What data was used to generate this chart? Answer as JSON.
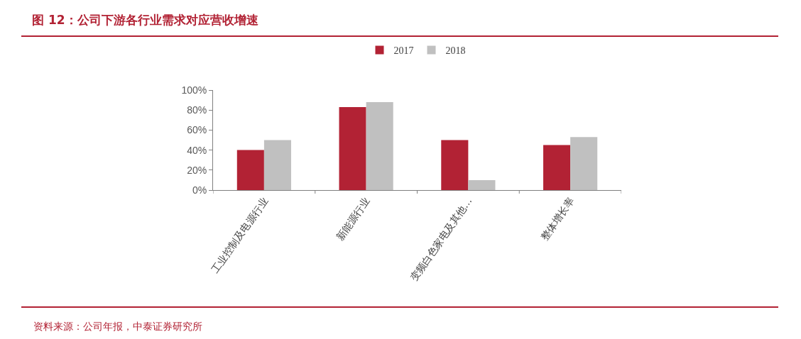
{
  "chart_data": {
    "type": "bar",
    "title": "图 12：公司下游各行业需求对应营收增速",
    "categories": [
      "工业控制及电源行业",
      "新能源行业",
      "变频白色家电及其他…",
      "整体增长率"
    ],
    "series": [
      {
        "name": "2017",
        "color": "#b22234",
        "values": [
          40,
          83,
          50,
          45
        ]
      },
      {
        "name": "2018",
        "color": "#c0c0c0",
        "values": [
          50,
          88,
          10,
          53
        ]
      }
    ],
    "ylim": [
      0,
      100
    ],
    "yticks": [
      {
        "value": 0,
        "label": "0%"
      },
      {
        "value": 20,
        "label": "20%"
      },
      {
        "value": 40,
        "label": "40%"
      },
      {
        "value": 60,
        "label": "60%"
      },
      {
        "value": 80,
        "label": "80%"
      },
      {
        "value": 100,
        "label": "100%"
      }
    ],
    "grid": false,
    "legend": "top",
    "annotations": [
      "资料来源：公司年报，中泰证券研究所"
    ]
  }
}
